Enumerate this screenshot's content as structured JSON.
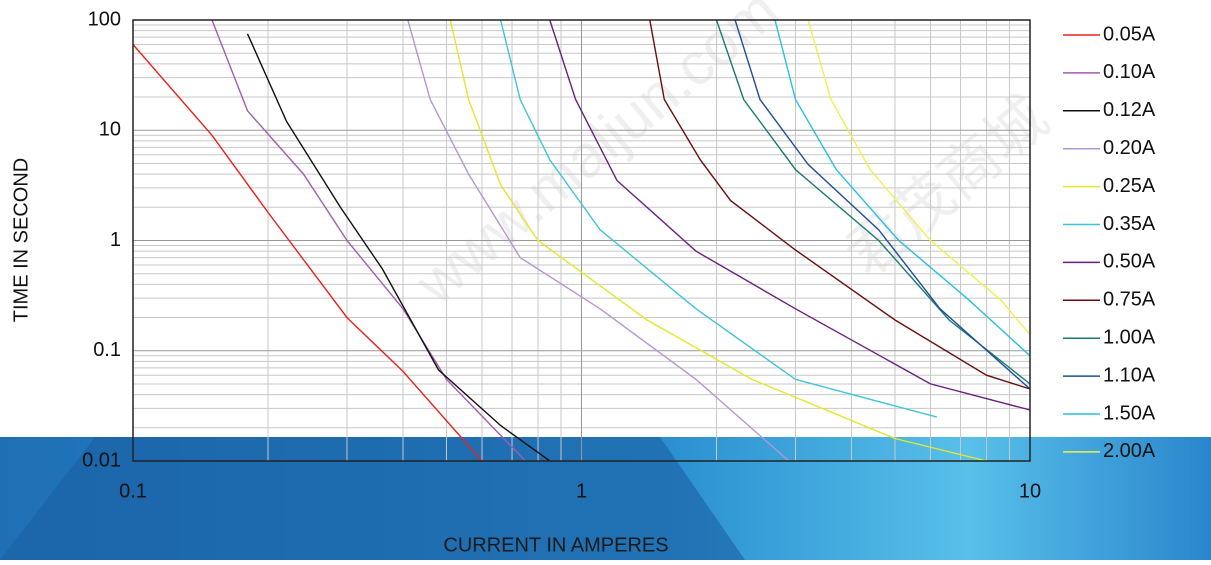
{
  "chart_data": {
    "type": "line",
    "x_label": "CURRENT IN AMPERES",
    "y_label": "TIME IN SECOND",
    "log_x": true,
    "log_y": true,
    "grid": true,
    "legend": "right",
    "xlim": [
      0.1,
      10
    ],
    "xticks": [
      0.1,
      1,
      10
    ],
    "ylim": [
      0.01,
      100
    ],
    "yticks": [
      0.01,
      0.1,
      1,
      10,
      100
    ],
    "watermarks": [
      "www.maljun.com",
      "君茂商城"
    ],
    "series": [
      {
        "name": "0.05A",
        "color": "#e8231f",
        "x": [
          0.1,
          0.15,
          0.2,
          0.3,
          0.4,
          0.6
        ],
        "values": [
          60,
          9,
          1.8,
          0.2,
          0.065,
          0.01
        ]
      },
      {
        "name": "0.10A",
        "color": "#a35bb5",
        "x": [
          0.15,
          0.18,
          0.24,
          0.3,
          0.4,
          0.5,
          0.75
        ],
        "values": [
          100,
          15,
          4,
          1,
          0.24,
          0.055,
          0.01
        ]
      },
      {
        "name": "0.12A",
        "color": "#111111",
        "x": [
          0.18,
          0.22,
          0.29,
          0.36,
          0.48,
          0.66,
          0.85
        ],
        "values": [
          75,
          12,
          2,
          0.55,
          0.067,
          0.021,
          0.01
        ]
      },
      {
        "name": "0.20A",
        "color": "#b496d6",
        "x": [
          0.41,
          0.46,
          0.56,
          0.73,
          1.1,
          1.8,
          2.9
        ],
        "values": [
          100,
          19,
          4,
          0.7,
          0.24,
          0.055,
          0.01
        ]
      },
      {
        "name": "0.25A",
        "color": "#e6e62e",
        "x": [
          0.51,
          0.56,
          0.66,
          0.8,
          1.4,
          2.4,
          5,
          8
        ],
        "values": [
          100,
          19,
          3.2,
          1,
          0.19,
          0.055,
          0.016,
          0.01
        ]
      },
      {
        "name": "0.35A",
        "color": "#3ec4d9",
        "x": [
          0.66,
          0.73,
          0.85,
          1.1,
          1.8,
          3,
          6.2
        ],
        "values": [
          100,
          19,
          5.4,
          1.25,
          0.24,
          0.055,
          0.025
        ]
      },
      {
        "name": "0.50A",
        "color": "#6b1f7f",
        "x": [
          0.85,
          0.97,
          1.2,
          1.8,
          3,
          6,
          10
        ],
        "values": [
          100,
          19,
          3.5,
          0.8,
          0.24,
          0.05,
          0.029
        ]
      },
      {
        "name": "0.75A",
        "color": "#6b0e0e",
        "x": [
          1.42,
          1.53,
          1.84,
          2.15,
          3,
          5,
          8,
          10
        ],
        "values": [
          100,
          19,
          5.4,
          2.3,
          0.82,
          0.19,
          0.06,
          0.045
        ]
      },
      {
        "name": "1.00A",
        "color": "#1a7a70",
        "x": [
          2,
          2.3,
          3,
          4.6,
          6.6,
          10
        ],
        "values": [
          100,
          19,
          4.4,
          1,
          0.19,
          0.05
        ]
      },
      {
        "name": "1.10A",
        "color": "#1f4e9a",
        "x": [
          2.2,
          2.5,
          3.2,
          4.6,
          6.3,
          10
        ],
        "values": [
          100,
          19,
          4.9,
          1.25,
          0.24,
          0.045
        ]
      },
      {
        "name": "1.50A",
        "color": "#28c0e0",
        "x": [
          2.7,
          3,
          3.7,
          5.1,
          7.3,
          10
        ],
        "values": [
          100,
          19,
          4.4,
          1,
          0.29,
          0.09
        ]
      },
      {
        "name": "2.00A",
        "color": "#f0f050",
        "x": [
          3.2,
          3.6,
          4.4,
          6,
          8.6,
          10
        ],
        "values": [
          100,
          19,
          4.4,
          1,
          0.29,
          0.14
        ]
      }
    ]
  }
}
